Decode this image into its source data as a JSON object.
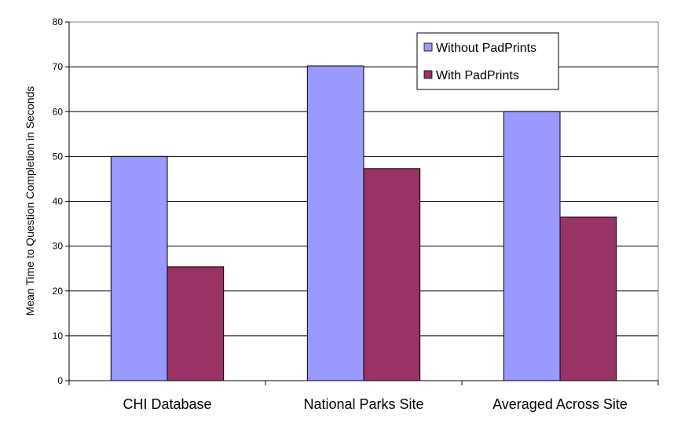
{
  "chart_data": {
    "type": "bar",
    "title": "",
    "xlabel": "",
    "ylabel": "Mean Time to Question Completion in Seconds",
    "ylim": [
      0,
      80
    ],
    "yticks": [
      0,
      10,
      20,
      30,
      40,
      50,
      60,
      70,
      80
    ],
    "grid": true,
    "legend_position": "top-right",
    "categories": [
      "CHI Database",
      "National Parks Site",
      "Averaged Across Site"
    ],
    "series": [
      {
        "name": "Without PadPrints",
        "color": "#9999ff",
        "values": [
          50,
          70.2,
          60
        ]
      },
      {
        "name": "With PadPrints",
        "color": "#993366",
        "values": [
          25.4,
          47.3,
          36.5
        ]
      }
    ]
  }
}
